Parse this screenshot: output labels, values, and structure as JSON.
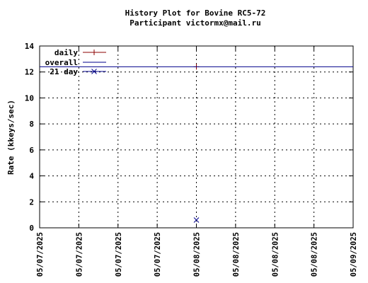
{
  "chart_data": {
    "type": "line",
    "title": "History Plot for Bovine RC5-72",
    "subtitle": "Participant victormx@mail.ru",
    "xlabel": "",
    "ylabel": "Rate (kkeys/sec)",
    "ylim": [
      0,
      14
    ],
    "y_ticks": [
      0,
      2,
      4,
      6,
      8,
      10,
      12,
      14
    ],
    "x_tick_labels": [
      "05/07/2025",
      "05/07/2025",
      "05/07/2025",
      "05/07/2025",
      "05/08/2025",
      "05/08/2025",
      "05/08/2025",
      "05/08/2025",
      "05/09/2025"
    ],
    "grid": true,
    "legend_position": "top-left",
    "series": [
      {
        "name": "daily",
        "style": "plus-marker",
        "color": "#8b0000",
        "points": [
          {
            "x": "05/08/2025",
            "y": 12.4
          }
        ]
      },
      {
        "name": "overall",
        "style": "line",
        "color": "#00008b",
        "points": [
          {
            "x": "05/07/2025",
            "y": 12.4
          },
          {
            "x": "05/09/2025",
            "y": 12.4
          }
        ]
      },
      {
        "name": "21 day",
        "style": "x-marker",
        "color": "#00008b",
        "points": [
          {
            "x": "05/08/2025",
            "y": 0.6
          }
        ]
      }
    ]
  }
}
